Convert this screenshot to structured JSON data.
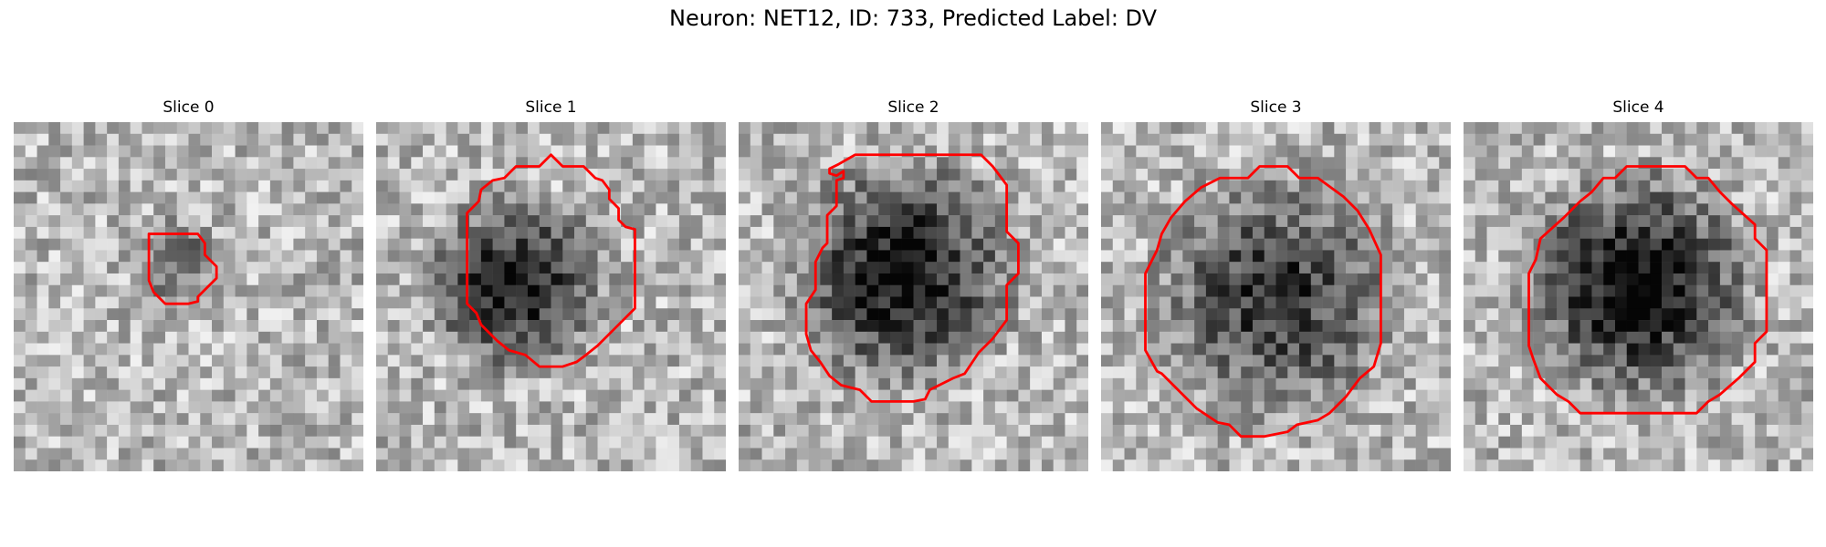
{
  "figure": {
    "title": "Neuron: NET12, ID: 733, Predicted Label: DV"
  },
  "colors": {
    "contour": "#ff0000",
    "background": "#ffffff"
  },
  "panels": [
    {
      "title": "Slice 0",
      "grid_size": 30,
      "blob_cx": 14,
      "blob_cy": 12,
      "blob_r": 4,
      "blob_depth": 0.35,
      "seed": 11
    },
    {
      "title": "Slice 1",
      "grid_size": 30,
      "blob_cx": 12,
      "blob_cy": 14,
      "blob_r": 8,
      "blob_depth": 0.65,
      "seed": 23
    },
    {
      "title": "Slice 2",
      "grid_size": 30,
      "blob_cx": 14,
      "blob_cy": 13,
      "blob_r": 10,
      "blob_depth": 0.7,
      "seed": 37
    },
    {
      "title": "Slice 3",
      "grid_size": 30,
      "blob_cx": 15,
      "blob_cy": 15,
      "blob_r": 11,
      "blob_depth": 0.55,
      "seed": 41
    },
    {
      "title": "Slice 4",
      "grid_size": 30,
      "blob_cx": 15,
      "blob_cy": 14,
      "blob_r": 10,
      "blob_depth": 0.75,
      "seed": 53
    }
  ]
}
